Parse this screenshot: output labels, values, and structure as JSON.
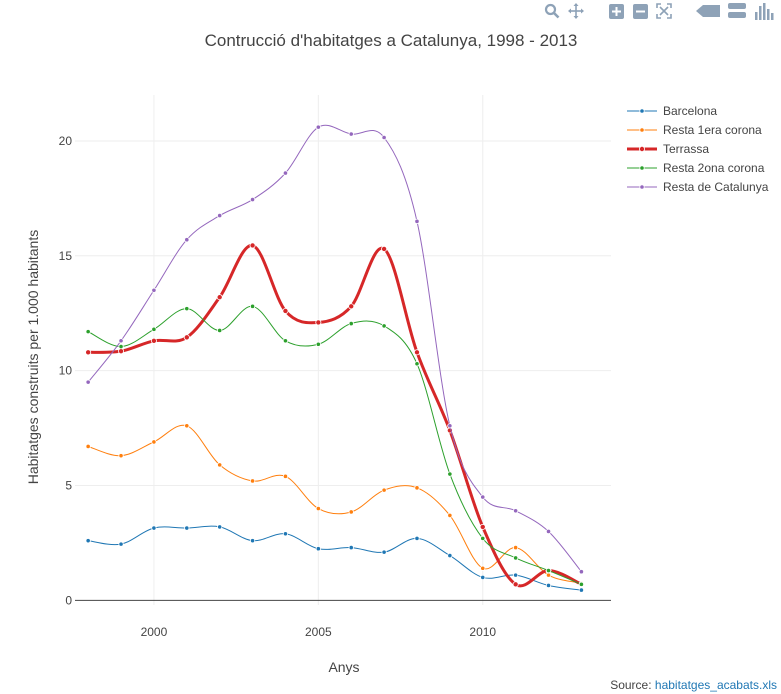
{
  "modebar": {
    "icons": [
      "zoom-icon",
      "pan-icon",
      "zoom-in-icon",
      "zoom-out-icon",
      "autoscale-icon",
      "reset-axes-icon",
      "hover-closest-icon",
      "hover-compare-icon",
      "plotly-logo-icon"
    ]
  },
  "chart_data": {
    "type": "line",
    "title": "Contrucció d'habitatges a Catalunya, 1998 - 2013",
    "xlabel": "Anys",
    "ylabel": "Habitatges construits per 1.000 habitants",
    "x": [
      1998,
      1999,
      2000,
      2001,
      2002,
      2003,
      2004,
      2005,
      2006,
      2007,
      2008,
      2009,
      2010,
      2011,
      2012,
      2013
    ],
    "xlim": [
      1997.6,
      2013.9
    ],
    "ylim": [
      -0.2,
      22
    ],
    "xticks": [
      2000,
      2005,
      2010
    ],
    "xtick_labels": [
      "2000",
      "2005",
      "2010"
    ],
    "yticks": [
      0,
      5,
      10,
      15,
      20
    ],
    "ytick_labels": [
      "0",
      "5",
      "10",
      "15",
      "20"
    ],
    "grid": true,
    "legend_position": "top-right",
    "series": [
      {
        "name": "Barcelona",
        "color": "#1f77b4",
        "width": 1,
        "values": [
          2.6,
          2.45,
          3.15,
          3.15,
          3.2,
          2.6,
          2.9,
          2.25,
          2.3,
          2.1,
          2.7,
          1.95,
          1.0,
          1.1,
          0.65,
          0.45
        ]
      },
      {
        "name": "Resta 1era corona",
        "color": "#ff7f0e",
        "width": 1,
        "values": [
          6.7,
          6.3,
          6.9,
          7.6,
          5.9,
          5.2,
          5.4,
          4.0,
          3.85,
          4.8,
          4.9,
          3.7,
          1.4,
          2.3,
          1.1,
          0.75
        ]
      },
      {
        "name": "Terrassa",
        "color": "#d62728",
        "width": 3,
        "values": [
          10.8,
          10.85,
          11.3,
          11.45,
          13.2,
          15.45,
          12.6,
          12.1,
          12.8,
          15.3,
          10.8,
          7.4,
          3.2,
          0.7,
          1.3,
          0.7
        ]
      },
      {
        "name": "Resta 2ona corona",
        "color": "#2ca02c",
        "width": 1,
        "values": [
          11.7,
          11.05,
          11.8,
          12.7,
          11.75,
          12.8,
          11.3,
          11.15,
          12.05,
          11.95,
          10.3,
          5.5,
          2.7,
          1.85,
          1.3,
          0.7
        ]
      },
      {
        "name": "Resta de Catalunya",
        "color": "#9467bd",
        "width": 1,
        "values": [
          9.5,
          11.3,
          13.5,
          15.7,
          16.75,
          17.45,
          18.6,
          20.6,
          20.3,
          20.15,
          16.5,
          7.6,
          4.5,
          3.9,
          3.0,
          1.25
        ]
      }
    ]
  },
  "source": {
    "label": "Source:",
    "link_text": "habitatges_acabats.xls"
  }
}
